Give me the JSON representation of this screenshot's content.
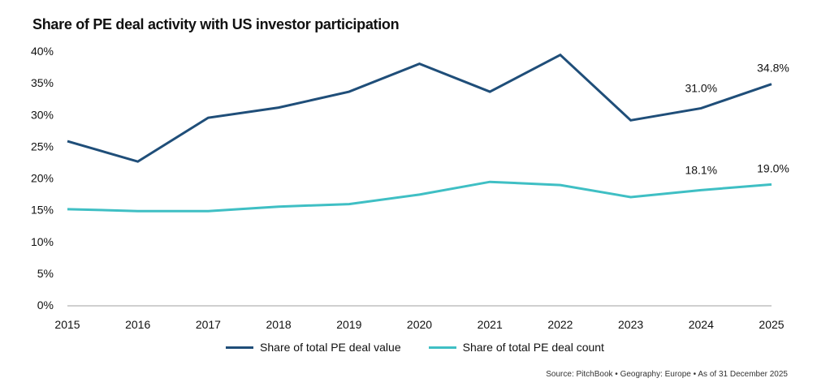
{
  "chart_data": {
    "type": "line",
    "title": "Share of PE deal activity with US investor participation",
    "x": [
      "2015",
      "2016",
      "2017",
      "2018",
      "2019",
      "2020",
      "2021",
      "2022",
      "2023",
      "2024",
      "2025"
    ],
    "ylim": [
      0,
      40
    ],
    "yticks": [
      "0%",
      "5%",
      "10%",
      "15%",
      "20%",
      "25%",
      "30%",
      "35%",
      "40%"
    ],
    "ytick_values": [
      0,
      5,
      10,
      15,
      20,
      25,
      30,
      35,
      40
    ],
    "grid": false,
    "legend_position": "bottom",
    "series": [
      {
        "name": "Share of total PE deal value",
        "color": "#1f4e79",
        "values": [
          25.8,
          22.6,
          29.5,
          31.1,
          33.6,
          38.0,
          33.6,
          39.4,
          29.1,
          31.0,
          34.8
        ],
        "labels": {
          "9": "31.0%",
          "10": "34.8%"
        }
      },
      {
        "name": "Share of total PE deal count",
        "color": "#3fbfc4",
        "values": [
          15.1,
          14.8,
          14.8,
          15.5,
          15.9,
          17.4,
          19.4,
          18.9,
          17.0,
          18.1,
          19.0
        ],
        "labels": {
          "9": "18.1%",
          "10": "19.0%"
        }
      }
    ],
    "source": "Source: PitchBook  •  Geography: Europe •  As of 31 December 2025"
  }
}
